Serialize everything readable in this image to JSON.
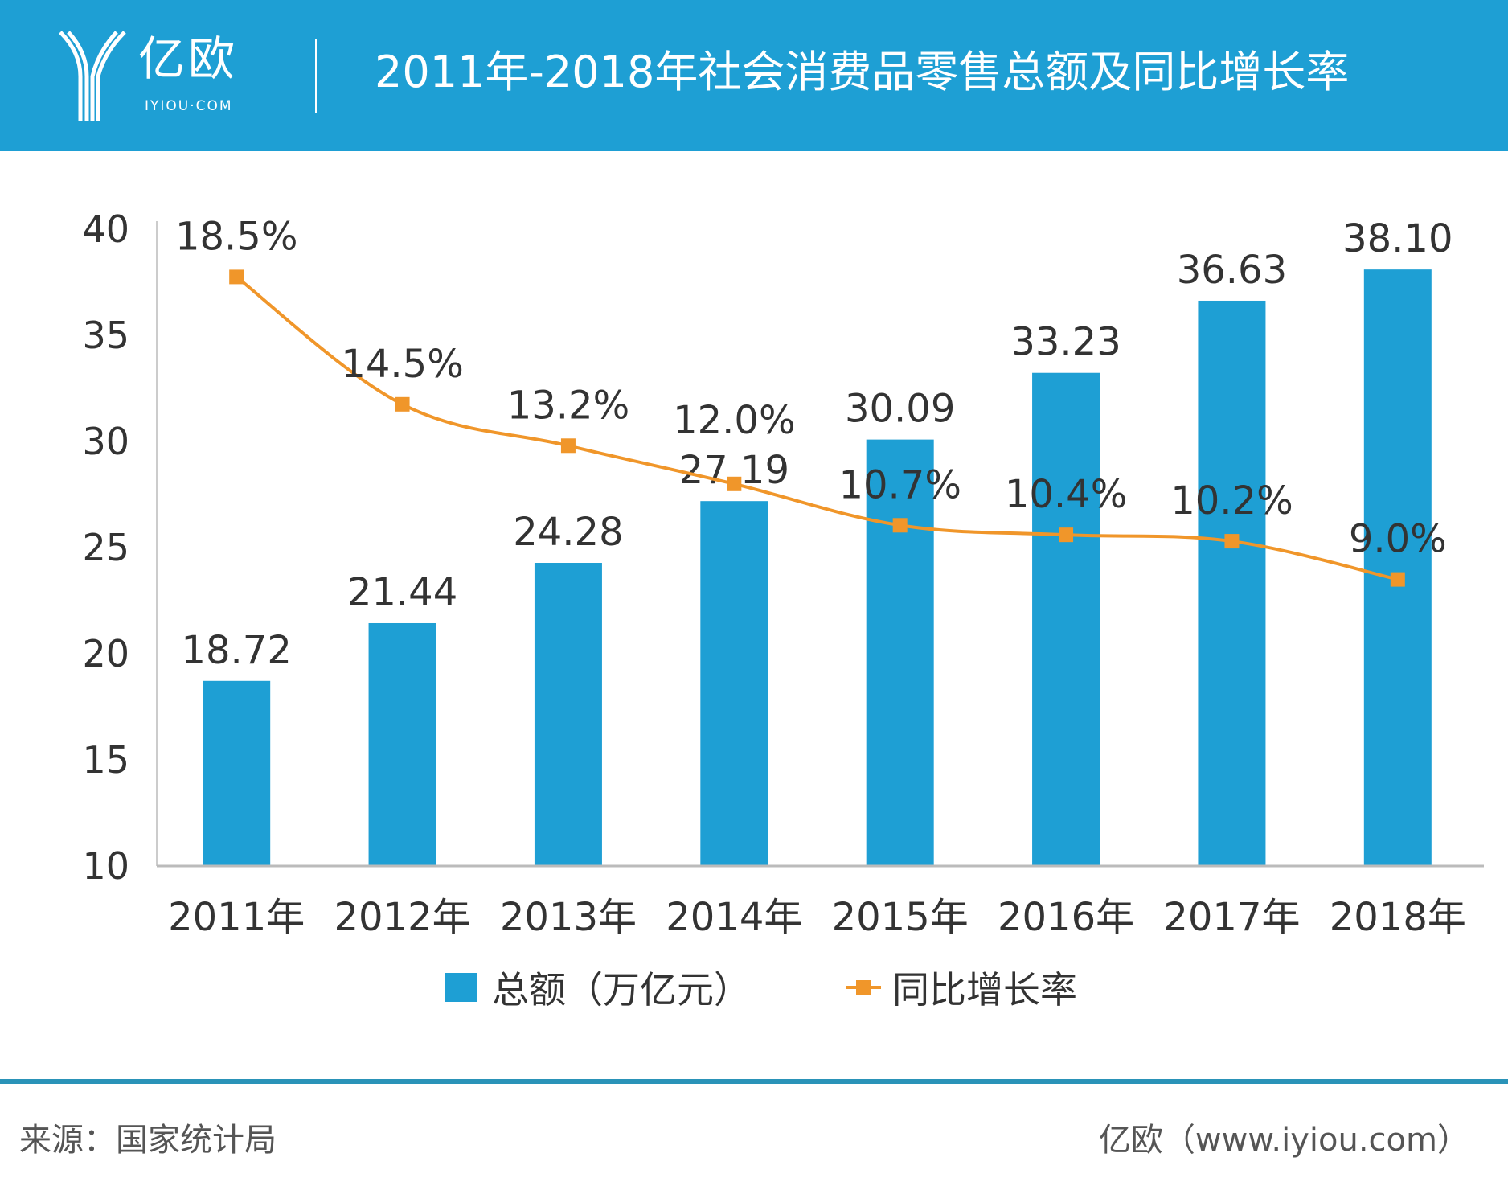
{
  "header": {
    "logo_text": "亿欧",
    "logo_sub": "IYIOU·COM",
    "title": "2011年-2018年社会消费品零售总额及同比增长率",
    "background": "#1e9fd4"
  },
  "chart_data": {
    "type": "bar+line",
    "title": "2011年-2018年社会消费品零售总额及同比增长率",
    "categories": [
      "2011年",
      "2012年",
      "2013年",
      "2014年",
      "2015年",
      "2016年",
      "2017年",
      "2018年"
    ],
    "series": [
      {
        "name": "总额（万亿元）",
        "type": "bar",
        "axis": "left",
        "color": "#1e9fd4",
        "values": [
          18.72,
          21.44,
          24.28,
          27.19,
          30.09,
          33.23,
          36.63,
          38.1
        ],
        "labels": [
          "18.72",
          "21.44",
          "24.28",
          "27.19",
          "30.09",
          "33.23",
          "36.63",
          "38.10"
        ]
      },
      {
        "name": "同比增长率",
        "type": "line",
        "axis": "right",
        "color": "#f0962a",
        "values": [
          18.5,
          14.5,
          13.2,
          12.0,
          10.7,
          10.4,
          10.2,
          9.0
        ],
        "labels": [
          "18.5%",
          "14.5%",
          "13.2%",
          "12.0%",
          "10.7%",
          "10.4%",
          "10.2%",
          "9.0%"
        ]
      }
    ],
    "yaxis_left": {
      "min": 10,
      "max": 40,
      "ticks": [
        "10",
        "15",
        "20",
        "25",
        "30",
        "35",
        "40"
      ]
    },
    "yaxis_right": {
      "min": 0,
      "max": 20,
      "visible": false
    },
    "grid": false,
    "legend": "bottom"
  },
  "footer": {
    "source": "来源：国家统计局",
    "site": "亿欧（www.iyiou.com）"
  }
}
